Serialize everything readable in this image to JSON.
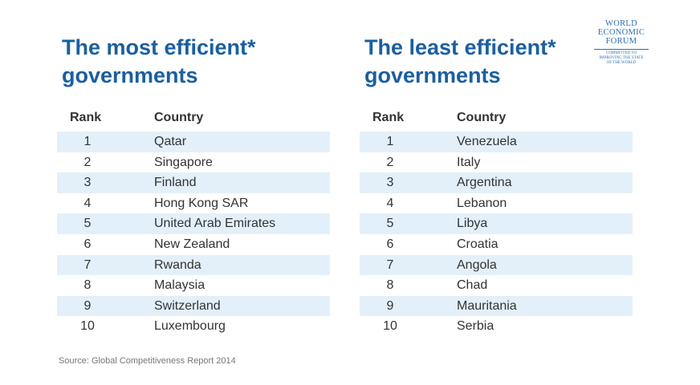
{
  "chart_data": [
    {
      "type": "table",
      "title_lines": [
        "The most efficient*",
        "governments"
      ],
      "columns": [
        "Rank",
        "Country"
      ],
      "rows": [
        {
          "rank": "1",
          "country": "Qatar"
        },
        {
          "rank": "2",
          "country": "Singapore"
        },
        {
          "rank": "3",
          "country": "Finland"
        },
        {
          "rank": "4",
          "country": "Hong Kong SAR"
        },
        {
          "rank": "5",
          "country": "United Arab Emirates"
        },
        {
          "rank": "6",
          "country": "New Zealand"
        },
        {
          "rank": "7",
          "country": "Rwanda"
        },
        {
          "rank": "8",
          "country": "Malaysia"
        },
        {
          "rank": "9",
          "country": "Switzerland"
        },
        {
          "rank": "10",
          "country": "Luxembourg"
        }
      ]
    },
    {
      "type": "table",
      "title_lines": [
        "The least efficient*",
        "governments"
      ],
      "columns": [
        "Rank",
        "Country"
      ],
      "rows": [
        {
          "rank": "1",
          "country": "Venezuela"
        },
        {
          "rank": "2",
          "country": "Italy"
        },
        {
          "rank": "3",
          "country": "Argentina"
        },
        {
          "rank": "4",
          "country": "Lebanon"
        },
        {
          "rank": "5",
          "country": "Libya"
        },
        {
          "rank": "6",
          "country": "Croatia"
        },
        {
          "rank": "7",
          "country": "Angola"
        },
        {
          "rank": "8",
          "country": "Chad"
        },
        {
          "rank": "9",
          "country": "Mauritania"
        },
        {
          "rank": "10",
          "country": "Serbia"
        }
      ]
    }
  ],
  "source": "Source: Global Competitiveness Report 2014",
  "logo": {
    "lines": [
      "WORLD",
      "ECONOMIC",
      "FORUM"
    ],
    "tagline": [
      "COMMITTED TO",
      "IMPROVING THE STATE",
      "OF THE WORLD"
    ]
  },
  "colors": {
    "title": "#1a5fa0",
    "row_shade": "#e4f0f9",
    "text": "#333333",
    "logo": "#2a6fb0"
  }
}
